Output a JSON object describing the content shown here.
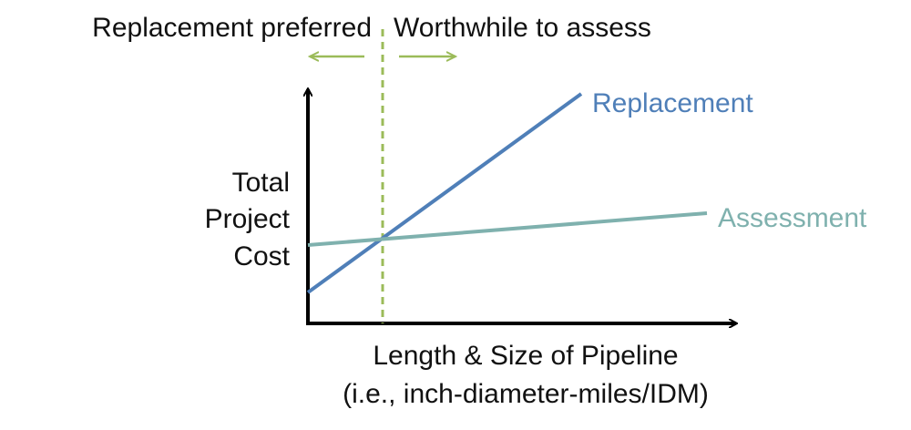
{
  "header": {
    "left": "Replacement preferred",
    "right": "Worthwhile to assess"
  },
  "lines": [
    {
      "label": "Replacement"
    },
    {
      "label": "Assessment"
    }
  ],
  "y_axis": {
    "label": [
      "Total",
      "Project",
      "Cost"
    ]
  },
  "x_axis": {
    "label": [
      "Length & Size of Pipeline",
      "(i.e., inch-diameter-miles/IDM)"
    ]
  }
}
